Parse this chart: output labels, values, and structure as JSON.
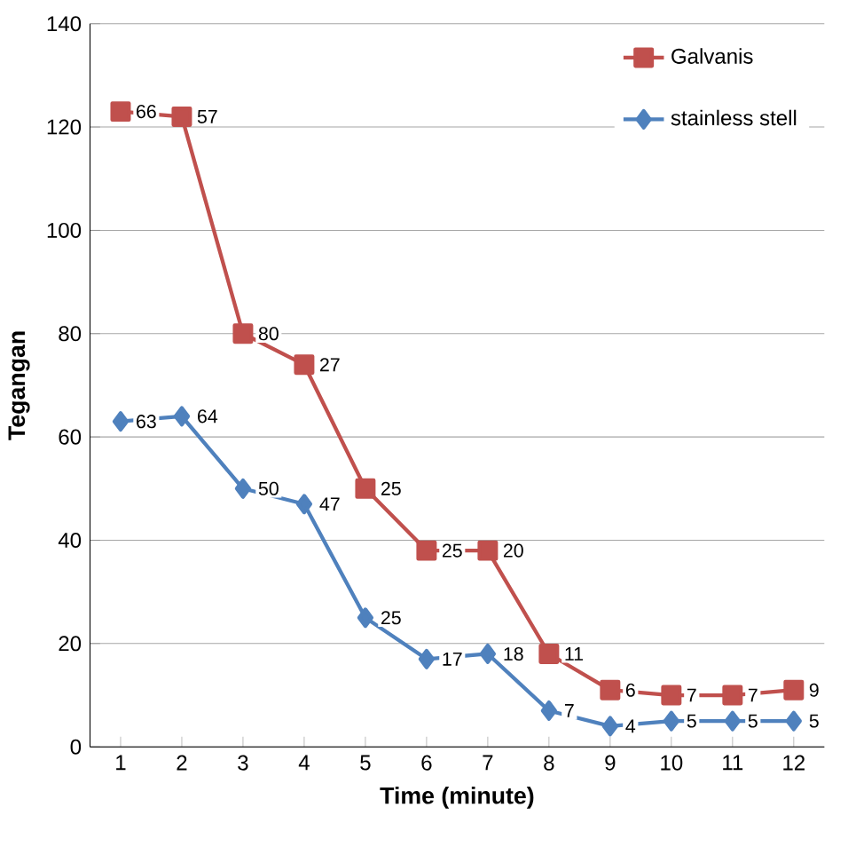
{
  "chart_data": {
    "type": "line",
    "xlabel": "Time (minute)",
    "ylabel": "Tegangan",
    "categories": [
      "1",
      "2",
      "3",
      "4",
      "5",
      "6",
      "7",
      "8",
      "9",
      "10",
      "11",
      "12"
    ],
    "annotations": [
      {
        "text": "66",
        "x": "1",
        "y": 123
      },
      {
        "text": "57",
        "x": "2",
        "y": 122
      },
      {
        "text": "80",
        "x": "3",
        "y": 80
      },
      {
        "text": "27",
        "x": "4",
        "y": 74
      },
      {
        "text": "25",
        "x": "5",
        "y": 50
      },
      {
        "text": "25",
        "x": "6",
        "y": 38
      },
      {
        "text": "20",
        "x": "7",
        "y": 38
      },
      {
        "text": "11",
        "x": "8",
        "y": 18
      },
      {
        "text": "6",
        "x": "9",
        "y": 11
      },
      {
        "text": "7",
        "x": "10",
        "y": 10
      },
      {
        "text": "7",
        "x": "11",
        "y": 10
      },
      {
        "text": "9",
        "x": "12",
        "y": 11
      }
    ],
    "ylim": [
      0,
      140
    ],
    "yticks": [
      0,
      20,
      40,
      60,
      80,
      100,
      120,
      140
    ],
    "grid": "y",
    "legend": "top right",
    "series": [
      {
        "name": "Galvanis",
        "color": "#c0504d",
        "marker": "square",
        "values": [
          123,
          122,
          80,
          74,
          50,
          38,
          38,
          18,
          11,
          10,
          10,
          11
        ]
      },
      {
        "name": "stainless stell",
        "color": "#4f81bd",
        "marker": "diamond",
        "values": [
          63,
          64,
          50,
          47,
          25,
          17,
          18,
          7,
          4,
          5,
          5,
          5
        ],
        "value_labels": [
          "63",
          "64",
          "50",
          "47",
          "25",
          "17",
          "18",
          "7",
          "4",
          "5",
          "5",
          "5"
        ]
      }
    ]
  }
}
